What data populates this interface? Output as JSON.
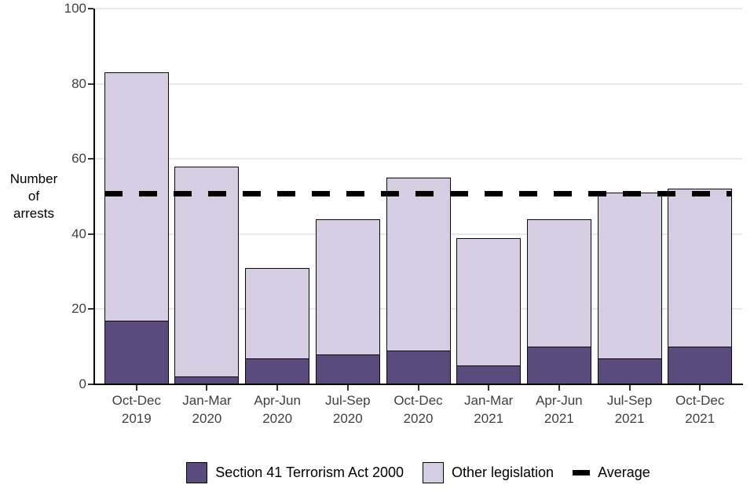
{
  "chart_data": {
    "type": "bar",
    "stacked": true,
    "categories": [
      "Oct-Dec 2019",
      "Jan-Mar 2020",
      "Apr-Jun 2020",
      "Jul-Sep 2020",
      "Oct-Dec 2020",
      "Jan-Mar 2021",
      "Apr-Jun 2021",
      "Jul-Sep 2021",
      "Oct-Dec 2021"
    ],
    "category_lines": [
      [
        "Oct-Dec",
        "2019"
      ],
      [
        "Jan-Mar",
        "2020"
      ],
      [
        "Apr-Jun",
        "2020"
      ],
      [
        "Jul-Sep",
        "2020"
      ],
      [
        "Oct-Dec",
        "2020"
      ],
      [
        "Jan-Mar",
        "2021"
      ],
      [
        "Apr-Jun",
        "2021"
      ],
      [
        "Jul-Sep",
        "2021"
      ],
      [
        "Oct-Dec",
        "2021"
      ]
    ],
    "series": [
      {
        "name": "Section 41 Terrorism Act 2000",
        "color": "#5b4b7c",
        "values": [
          17,
          2,
          7,
          8,
          9,
          5,
          10,
          7,
          10
        ]
      },
      {
        "name": "Other legislation",
        "color": "#d5cee3",
        "values": [
          66,
          56,
          24,
          36,
          46,
          34,
          34,
          44,
          42
        ]
      }
    ],
    "totals": [
      83,
      58,
      31,
      44,
      55,
      39,
      44,
      51,
      52
    ],
    "average": 50.8,
    "average_label": "Average",
    "ylabel": "Number of arrests",
    "ylabel_lines": [
      "Number",
      "of",
      "arrests"
    ],
    "xlabel": "",
    "ylim": [
      0,
      100
    ],
    "yticks": [
      0,
      20,
      40,
      60,
      80,
      100
    ],
    "grid": "horizontal-major-only",
    "legend_position": "bottom-center",
    "bar_border_color": "#0a0a0a",
    "average_line_color": "#000000",
    "grid_color": "#e8e8e8",
    "tick_label_color": "#404040"
  }
}
